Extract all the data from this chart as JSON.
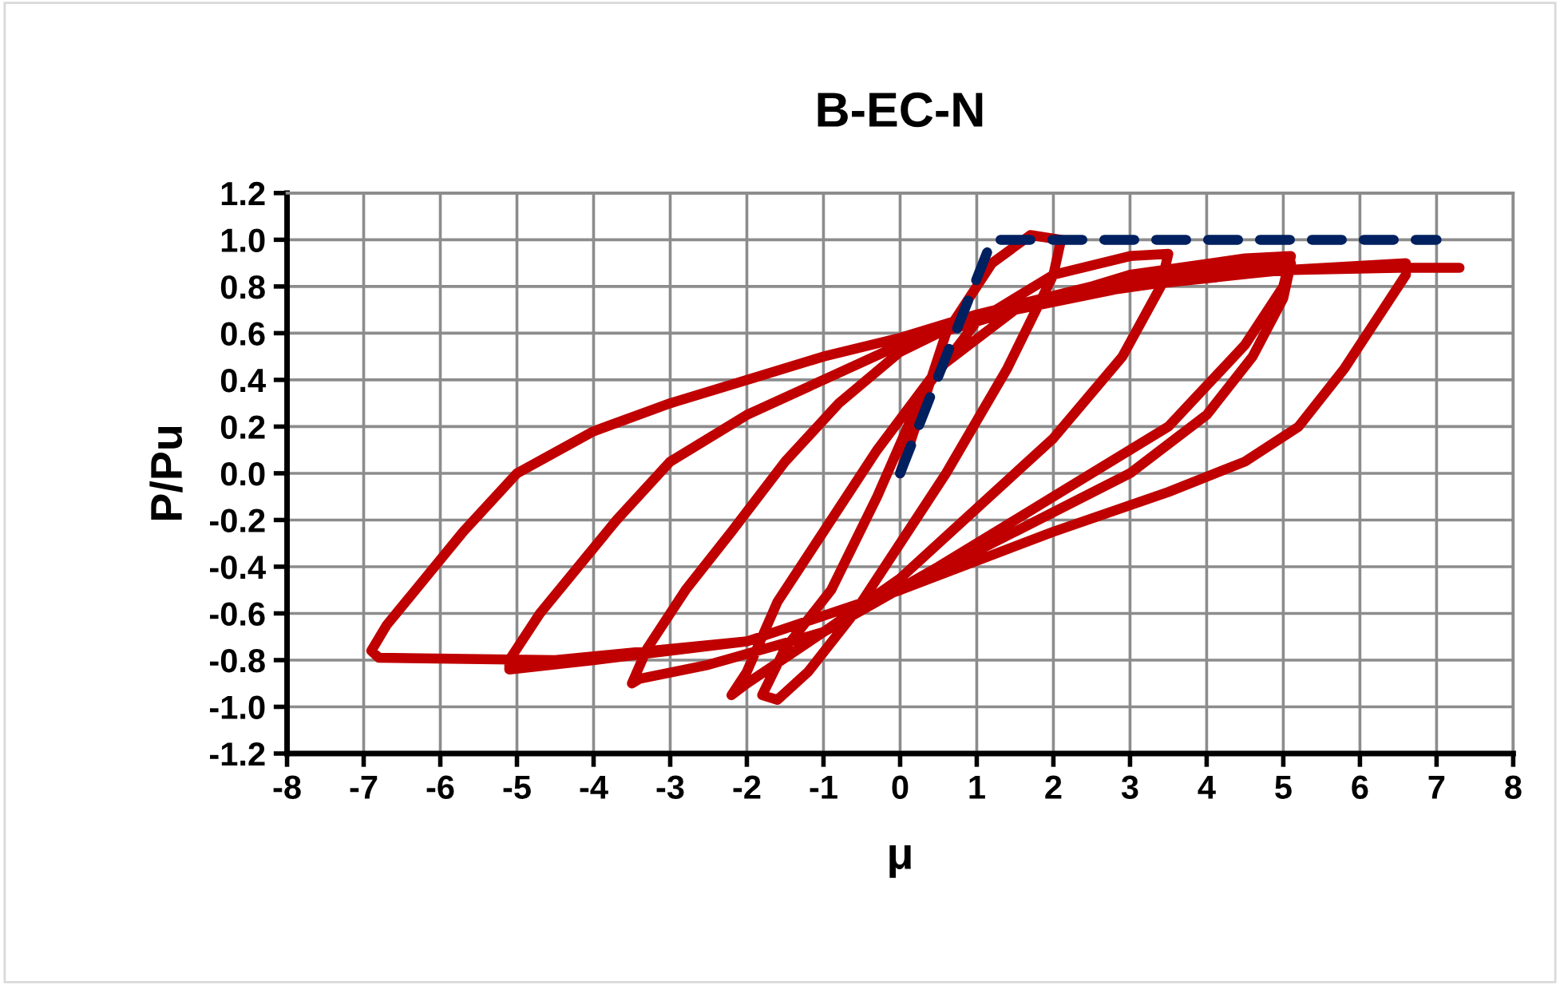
{
  "chart_data": {
    "type": "line",
    "title": "B-EC-N",
    "xlabel": "μ",
    "ylabel": "P/Pu",
    "xlim": [
      -8,
      8
    ],
    "xticks": [
      -8,
      -7,
      -6,
      -5,
      -4,
      -3,
      -2,
      -1,
      0,
      1,
      2,
      3,
      4,
      5,
      6,
      7,
      8
    ],
    "ylim": [
      -1.2,
      1.2
    ],
    "yticks": [
      {
        "value": -1.2,
        "label": "-1.2"
      },
      {
        "value": -1.0,
        "label": "-1.0"
      },
      {
        "value": -0.8,
        "label": "-0.8"
      },
      {
        "value": -0.6,
        "label": "-0.6"
      },
      {
        "value": -0.4,
        "label": "-0.4"
      },
      {
        "value": -0.2,
        "label": "-0.2"
      },
      {
        "value": 0,
        "label": "0.0"
      },
      {
        "value": 0.2,
        "label": "0.2"
      },
      {
        "value": 0.4,
        "label": "0.4"
      },
      {
        "value": 0.6,
        "label": "0.6"
      },
      {
        "value": 0.8,
        "label": "0.8"
      },
      {
        "value": 1.0,
        "label": "1.0"
      },
      {
        "value": 1.2,
        "label": "1.2"
      }
    ],
    "grid": true,
    "marker": "none",
    "series": [
      {
        "color": "#c00000",
        "line_style": "solid",
        "x": [
          0,
          0.6,
          1.2,
          1.7,
          2.1,
          2.0,
          1.4,
          0.6,
          0,
          -0.6,
          -1.2,
          -1.6,
          -1.8,
          -1.5,
          -0.9,
          -0.3,
          0.3,
          1.0,
          2.0,
          3.0,
          3.5,
          3.4,
          2.9,
          2.0,
          1.0,
          0,
          -1.0,
          -2.0,
          -2.2,
          -2.0,
          -1.6,
          -1.0,
          -0.3,
          0.5,
          1.5,
          3.0,
          4.5,
          5.1,
          5.0,
          4.5,
          3.5,
          2.0,
          0.5,
          -1.0,
          -2.5,
          -3.4,
          -3.5,
          -3.3,
          -2.8,
          -2.2,
          -1.5,
          -0.8,
          0,
          1.0,
          2.5,
          4.0,
          5.1,
          5.0,
          4.6,
          4.0,
          3.0,
          1.5,
          0,
          -2.0,
          -4.0,
          -5.1,
          -5.1,
          -4.7,
          -4.2,
          -3.7,
          -3.0,
          -2.0,
          -1.0,
          0,
          1.5,
          3.0,
          5.0,
          6.6,
          6.6,
          6.3,
          5.8,
          5.2,
          4.5,
          3.5,
          2.0,
          0,
          -2.0,
          -4.5,
          -6.8,
          -6.9,
          -6.7,
          -6.2,
          -5.7,
          -5.0,
          -4.0,
          -3.0,
          -2.0,
          -1.0,
          0,
          1.0,
          2.0,
          3.5,
          5.0,
          6.5,
          7.3
        ],
        "values": [
          0,
          0.6,
          0.9,
          1.02,
          1.0,
          0.85,
          0.45,
          0.0,
          -0.3,
          -0.6,
          -0.85,
          -0.97,
          -0.95,
          -0.75,
          -0.5,
          -0.1,
          0.35,
          0.65,
          0.85,
          0.93,
          0.94,
          0.8,
          0.5,
          0.15,
          -0.15,
          -0.45,
          -0.68,
          -0.9,
          -0.95,
          -0.85,
          -0.55,
          -0.25,
          0.1,
          0.45,
          0.7,
          0.85,
          0.92,
          0.93,
          0.8,
          0.55,
          0.2,
          -0.1,
          -0.4,
          -0.68,
          -0.82,
          -0.88,
          -0.9,
          -0.75,
          -0.5,
          -0.25,
          0.05,
          0.3,
          0.52,
          0.68,
          0.8,
          0.87,
          0.9,
          0.75,
          0.5,
          0.25,
          0.0,
          -0.25,
          -0.5,
          -0.72,
          -0.8,
          -0.84,
          -0.8,
          -0.6,
          -0.4,
          -0.2,
          0.05,
          0.25,
          0.4,
          0.55,
          0.7,
          0.8,
          0.87,
          0.9,
          0.85,
          0.7,
          0.45,
          0.2,
          0.05,
          -0.08,
          -0.25,
          -0.5,
          -0.72,
          -0.8,
          -0.79,
          -0.76,
          -0.65,
          -0.45,
          -0.25,
          0.0,
          0.18,
          0.3,
          0.4,
          0.5,
          0.58,
          0.68,
          0.75,
          0.82,
          0.87,
          0.88,
          0.88
        ]
      },
      {
        "color": "#002060",
        "line_style": "dashed",
        "x": [
          0,
          1.2,
          7.0
        ],
        "values": [
          0,
          1.0,
          1.0
        ]
      }
    ]
  }
}
